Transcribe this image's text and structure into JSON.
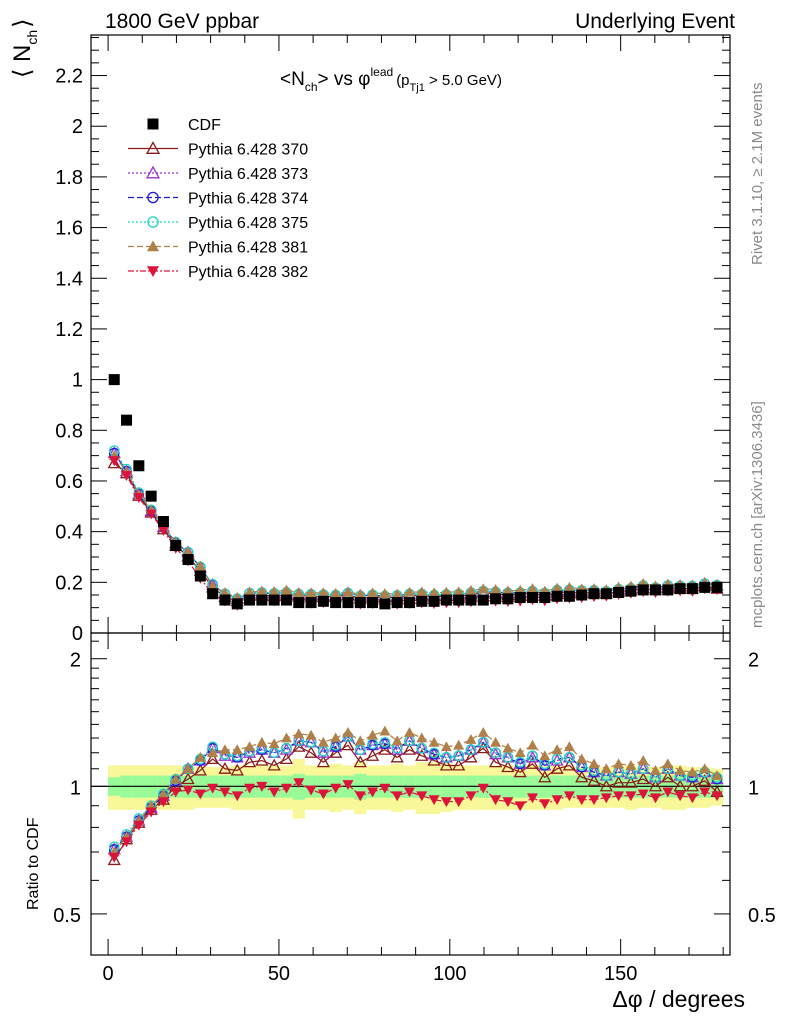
{
  "header": {
    "left_label": "1800 GeV ppbar",
    "right_label": "Underlying Event"
  },
  "side_labels": {
    "top": "Rivet 3.1.10, ≥ 2.1M events",
    "bottom": "mcplots.cern.ch [arXiv:1306.3436]"
  },
  "colors": {
    "data": "#000000",
    "s370": "#8b1a1a",
    "s373": "#9a32cd",
    "s374": "#1c1cd8",
    "s375": "#1fd8c0",
    "s381": "#b0804a",
    "s382": "#dc143c",
    "band_inner": "#98fb98",
    "band_outer": "#f8f898"
  },
  "chart_data": [
    {
      "type": "scatter",
      "title": "<N_ch> vs φ^lead (p_Tj1 > 5.0 GeV)",
      "title_parts": {
        "main": "<N",
        "sub": "ch",
        "mid": "> vs φ",
        "sup": "lead",
        "pre": "(p",
        "sub2": "Tj1",
        "post": " > 5.0 GeV)"
      },
      "ylabel": "⟨ N_ch ⟩",
      "ylabel_parts": {
        "open": "⟨ N",
        "sub": "ch",
        "close": "⟩"
      },
      "xlim": [
        -5,
        182
      ],
      "ylim": [
        0,
        2.36
      ],
      "yticks": [
        "0",
        "0.2",
        "0.4",
        "0.6",
        "0.8",
        "1",
        "1.2",
        "1.4",
        "1.6",
        "1.8",
        "2",
        "2.2"
      ],
      "legend_position": "top-left",
      "legend": [
        {
          "key": "cdf",
          "label": "CDF",
          "marker": "square",
          "color": "#000000",
          "dash": ""
        },
        {
          "key": "s370",
          "label": "Pythia 6.428 370",
          "marker": "triangle-open",
          "color": "#8b1a1a",
          "dash": ""
        },
        {
          "key": "s373",
          "label": "Pythia 6.428 373",
          "marker": "triangle-open",
          "color": "#9a32cd",
          "dash": "2,2"
        },
        {
          "key": "s374",
          "label": "Pythia 6.428 374",
          "marker": "circle-open",
          "color": "#1c1cd8",
          "dash": "6,3"
        },
        {
          "key": "s375",
          "label": "Pythia 6.428 375",
          "marker": "circle-open",
          "color": "#1fd8c0",
          "dash": "2,2"
        },
        {
          "key": "s381",
          "label": "Pythia 6.428 381",
          "marker": "triangle-filled",
          "color": "#b0804a",
          "dash": "6,3"
        },
        {
          "key": "s382",
          "label": "Pythia 6.428 382",
          "marker": "triangle-down-filled",
          "color": "#dc143c",
          "dash": "6,2,2,2"
        }
      ],
      "x": [
        1.8,
        5.4,
        9.0,
        12.6,
        16.2,
        19.8,
        23.4,
        27.0,
        30.6,
        34.2,
        37.8,
        41.4,
        45.0,
        48.6,
        52.2,
        55.8,
        59.4,
        63.0,
        66.6,
        70.2,
        73.8,
        77.4,
        81.0,
        84.6,
        88.2,
        91.8,
        95.4,
        99.0,
        102.6,
        106.2,
        109.8,
        113.4,
        117.0,
        120.6,
        124.2,
        127.8,
        131.4,
        135.0,
        138.6,
        142.2,
        145.8,
        149.4,
        153.0,
        156.6,
        160.2,
        163.8,
        167.4,
        171.0,
        174.6,
        178.2
      ],
      "data_values": [
        1.0,
        0.84,
        0.66,
        0.54,
        0.44,
        0.345,
        0.29,
        0.225,
        0.155,
        0.13,
        0.115,
        0.13,
        0.13,
        0.13,
        0.13,
        0.12,
        0.12,
        0.125,
        0.12,
        0.12,
        0.12,
        0.12,
        0.115,
        0.12,
        0.12,
        0.125,
        0.125,
        0.13,
        0.13,
        0.13,
        0.13,
        0.135,
        0.135,
        0.14,
        0.14,
        0.14,
        0.145,
        0.145,
        0.15,
        0.155,
        0.155,
        0.16,
        0.165,
        0.17,
        0.17,
        0.17,
        0.175,
        0.175,
        0.18,
        0.18
      ],
      "ratio_370": [
        0.67,
        0.75,
        0.82,
        0.88,
        0.93,
        1.0,
        1.04,
        1.09,
        1.16,
        1.1,
        1.09,
        1.14,
        1.15,
        1.12,
        1.16,
        1.24,
        1.2,
        1.14,
        1.2,
        1.25,
        1.14,
        1.18,
        1.22,
        1.17,
        1.22,
        1.18,
        1.15,
        1.12,
        1.12,
        1.17,
        1.23,
        1.14,
        1.11,
        1.08,
        1.13,
        1.05,
        1.1,
        1.12,
        1.05,
        1.03,
        1.0,
        1.02,
        1.02,
        1.04,
        1.0,
        1.05,
        1.0,
        1.0,
        1.03,
        0.97
      ],
      "series": [
        {
          "key": "s370",
          "name": "Pythia 6.428 370",
          "ratio": [
            0.67,
            0.75,
            0.82,
            0.88,
            0.93,
            1.0,
            1.04,
            1.09,
            1.16,
            1.1,
            1.09,
            1.14,
            1.15,
            1.12,
            1.16,
            1.24,
            1.2,
            1.14,
            1.2,
            1.25,
            1.14,
            1.18,
            1.22,
            1.17,
            1.22,
            1.18,
            1.15,
            1.12,
            1.12,
            1.17,
            1.23,
            1.14,
            1.11,
            1.08,
            1.13,
            1.05,
            1.1,
            1.12,
            1.05,
            1.03,
            1.0,
            1.02,
            1.02,
            1.04,
            1.0,
            1.05,
            1.0,
            1.0,
            1.03,
            0.97
          ]
        },
        {
          "key": "s373",
          "name": "Pythia 6.428 373",
          "ratio": [
            0.71,
            0.76,
            0.83,
            0.89,
            0.95,
            1.03,
            1.1,
            1.15,
            1.23,
            1.18,
            1.17,
            1.2,
            1.22,
            1.2,
            1.22,
            1.28,
            1.27,
            1.2,
            1.24,
            1.31,
            1.22,
            1.25,
            1.26,
            1.22,
            1.28,
            1.23,
            1.19,
            1.17,
            1.18,
            1.22,
            1.27,
            1.19,
            1.17,
            1.13,
            1.17,
            1.12,
            1.15,
            1.17,
            1.11,
            1.08,
            1.06,
            1.08,
            1.07,
            1.1,
            1.05,
            1.1,
            1.06,
            1.05,
            1.08,
            1.04
          ]
        },
        {
          "key": "s374",
          "name": "Pythia 6.428 374",
          "ratio": [
            0.71,
            0.76,
            0.83,
            0.89,
            0.95,
            1.03,
            1.1,
            1.15,
            1.23,
            1.19,
            1.17,
            1.21,
            1.22,
            1.2,
            1.23,
            1.28,
            1.27,
            1.21,
            1.24,
            1.31,
            1.22,
            1.25,
            1.26,
            1.23,
            1.28,
            1.23,
            1.19,
            1.17,
            1.18,
            1.22,
            1.27,
            1.2,
            1.17,
            1.13,
            1.18,
            1.12,
            1.16,
            1.17,
            1.11,
            1.08,
            1.06,
            1.08,
            1.07,
            1.1,
            1.05,
            1.1,
            1.06,
            1.05,
            1.08,
            1.04
          ]
        },
        {
          "key": "s375",
          "name": "Pythia 6.428 375",
          "ratio": [
            0.72,
            0.77,
            0.84,
            0.9,
            0.96,
            1.04,
            1.1,
            1.16,
            1.24,
            1.19,
            1.18,
            1.21,
            1.23,
            1.2,
            1.23,
            1.28,
            1.27,
            1.21,
            1.25,
            1.31,
            1.22,
            1.26,
            1.27,
            1.23,
            1.28,
            1.23,
            1.2,
            1.17,
            1.18,
            1.22,
            1.27,
            1.2,
            1.17,
            1.14,
            1.18,
            1.13,
            1.16,
            1.17,
            1.12,
            1.09,
            1.06,
            1.08,
            1.07,
            1.1,
            1.05,
            1.1,
            1.06,
            1.06,
            1.08,
            1.05
          ]
        },
        {
          "key": "s381",
          "name": "Pythia 6.428 381",
          "ratio": [
            0.7,
            0.76,
            0.83,
            0.9,
            0.96,
            1.04,
            1.1,
            1.17,
            1.2,
            1.22,
            1.22,
            1.24,
            1.27,
            1.26,
            1.3,
            1.33,
            1.32,
            1.27,
            1.3,
            1.34,
            1.28,
            1.32,
            1.35,
            1.28,
            1.34,
            1.3,
            1.27,
            1.24,
            1.25,
            1.29,
            1.34,
            1.27,
            1.23,
            1.2,
            1.25,
            1.18,
            1.22,
            1.24,
            1.16,
            1.13,
            1.1,
            1.13,
            1.12,
            1.15,
            1.09,
            1.13,
            1.09,
            1.08,
            1.1,
            1.06
          ]
        },
        {
          "key": "s382",
          "name": "Pythia 6.428 382",
          "ratio": [
            0.68,
            0.74,
            0.81,
            0.87,
            0.92,
            0.97,
            0.98,
            0.96,
            0.99,
            0.97,
            0.95,
            0.99,
            1.0,
            0.97,
            0.99,
            1.02,
            0.98,
            0.96,
            0.99,
            1.01,
            0.95,
            0.97,
            0.99,
            0.95,
            0.97,
            0.95,
            0.93,
            0.92,
            0.92,
            0.95,
            0.99,
            0.93,
            0.92,
            0.9,
            0.94,
            0.91,
            0.93,
            0.95,
            0.93,
            0.93,
            0.94,
            0.95,
            0.95,
            0.96,
            0.94,
            0.97,
            0.95,
            0.94,
            0.97,
            0.95
          ]
        }
      ]
    },
    {
      "type": "scatter",
      "title": "",
      "xlabel": "Δφ / degrees",
      "ylabel": "Ratio to CDF",
      "xlim": [
        -5,
        182
      ],
      "ylim": [
        0.4,
        2.3
      ],
      "log_y": true,
      "xticks": [
        "0",
        "50",
        "100",
        "150"
      ],
      "yticks": [
        "0.5",
        "1",
        "2"
      ],
      "band_inner": [
        0.05,
        0.06,
        0.06,
        0.06,
        0.06,
        0.06,
        0.06,
        0.06,
        0.06,
        0.06,
        0.06,
        0.06,
        0.06,
        0.06,
        0.06,
        0.07,
        0.06,
        0.06,
        0.06,
        0.06,
        0.07,
        0.06,
        0.06,
        0.06,
        0.06,
        0.06,
        0.06,
        0.06,
        0.06,
        0.06,
        0.06,
        0.06,
        0.06,
        0.06,
        0.06,
        0.06,
        0.06,
        0.06,
        0.06,
        0.06,
        0.06,
        0.06,
        0.06,
        0.06,
        0.06,
        0.06,
        0.06,
        0.06,
        0.06,
        0.06
      ],
      "band_outer": [
        0.12,
        0.12,
        0.12,
        0.12,
        0.12,
        0.12,
        0.12,
        0.11,
        0.11,
        0.11,
        0.12,
        0.12,
        0.12,
        0.12,
        0.12,
        0.16,
        0.12,
        0.12,
        0.13,
        0.12,
        0.14,
        0.12,
        0.12,
        0.13,
        0.12,
        0.14,
        0.14,
        0.13,
        0.12,
        0.12,
        0.12,
        0.12,
        0.12,
        0.12,
        0.12,
        0.12,
        0.12,
        0.11,
        0.11,
        0.11,
        0.11,
        0.11,
        0.12,
        0.11,
        0.11,
        0.12,
        0.12,
        0.11,
        0.11,
        0.1
      ]
    }
  ]
}
